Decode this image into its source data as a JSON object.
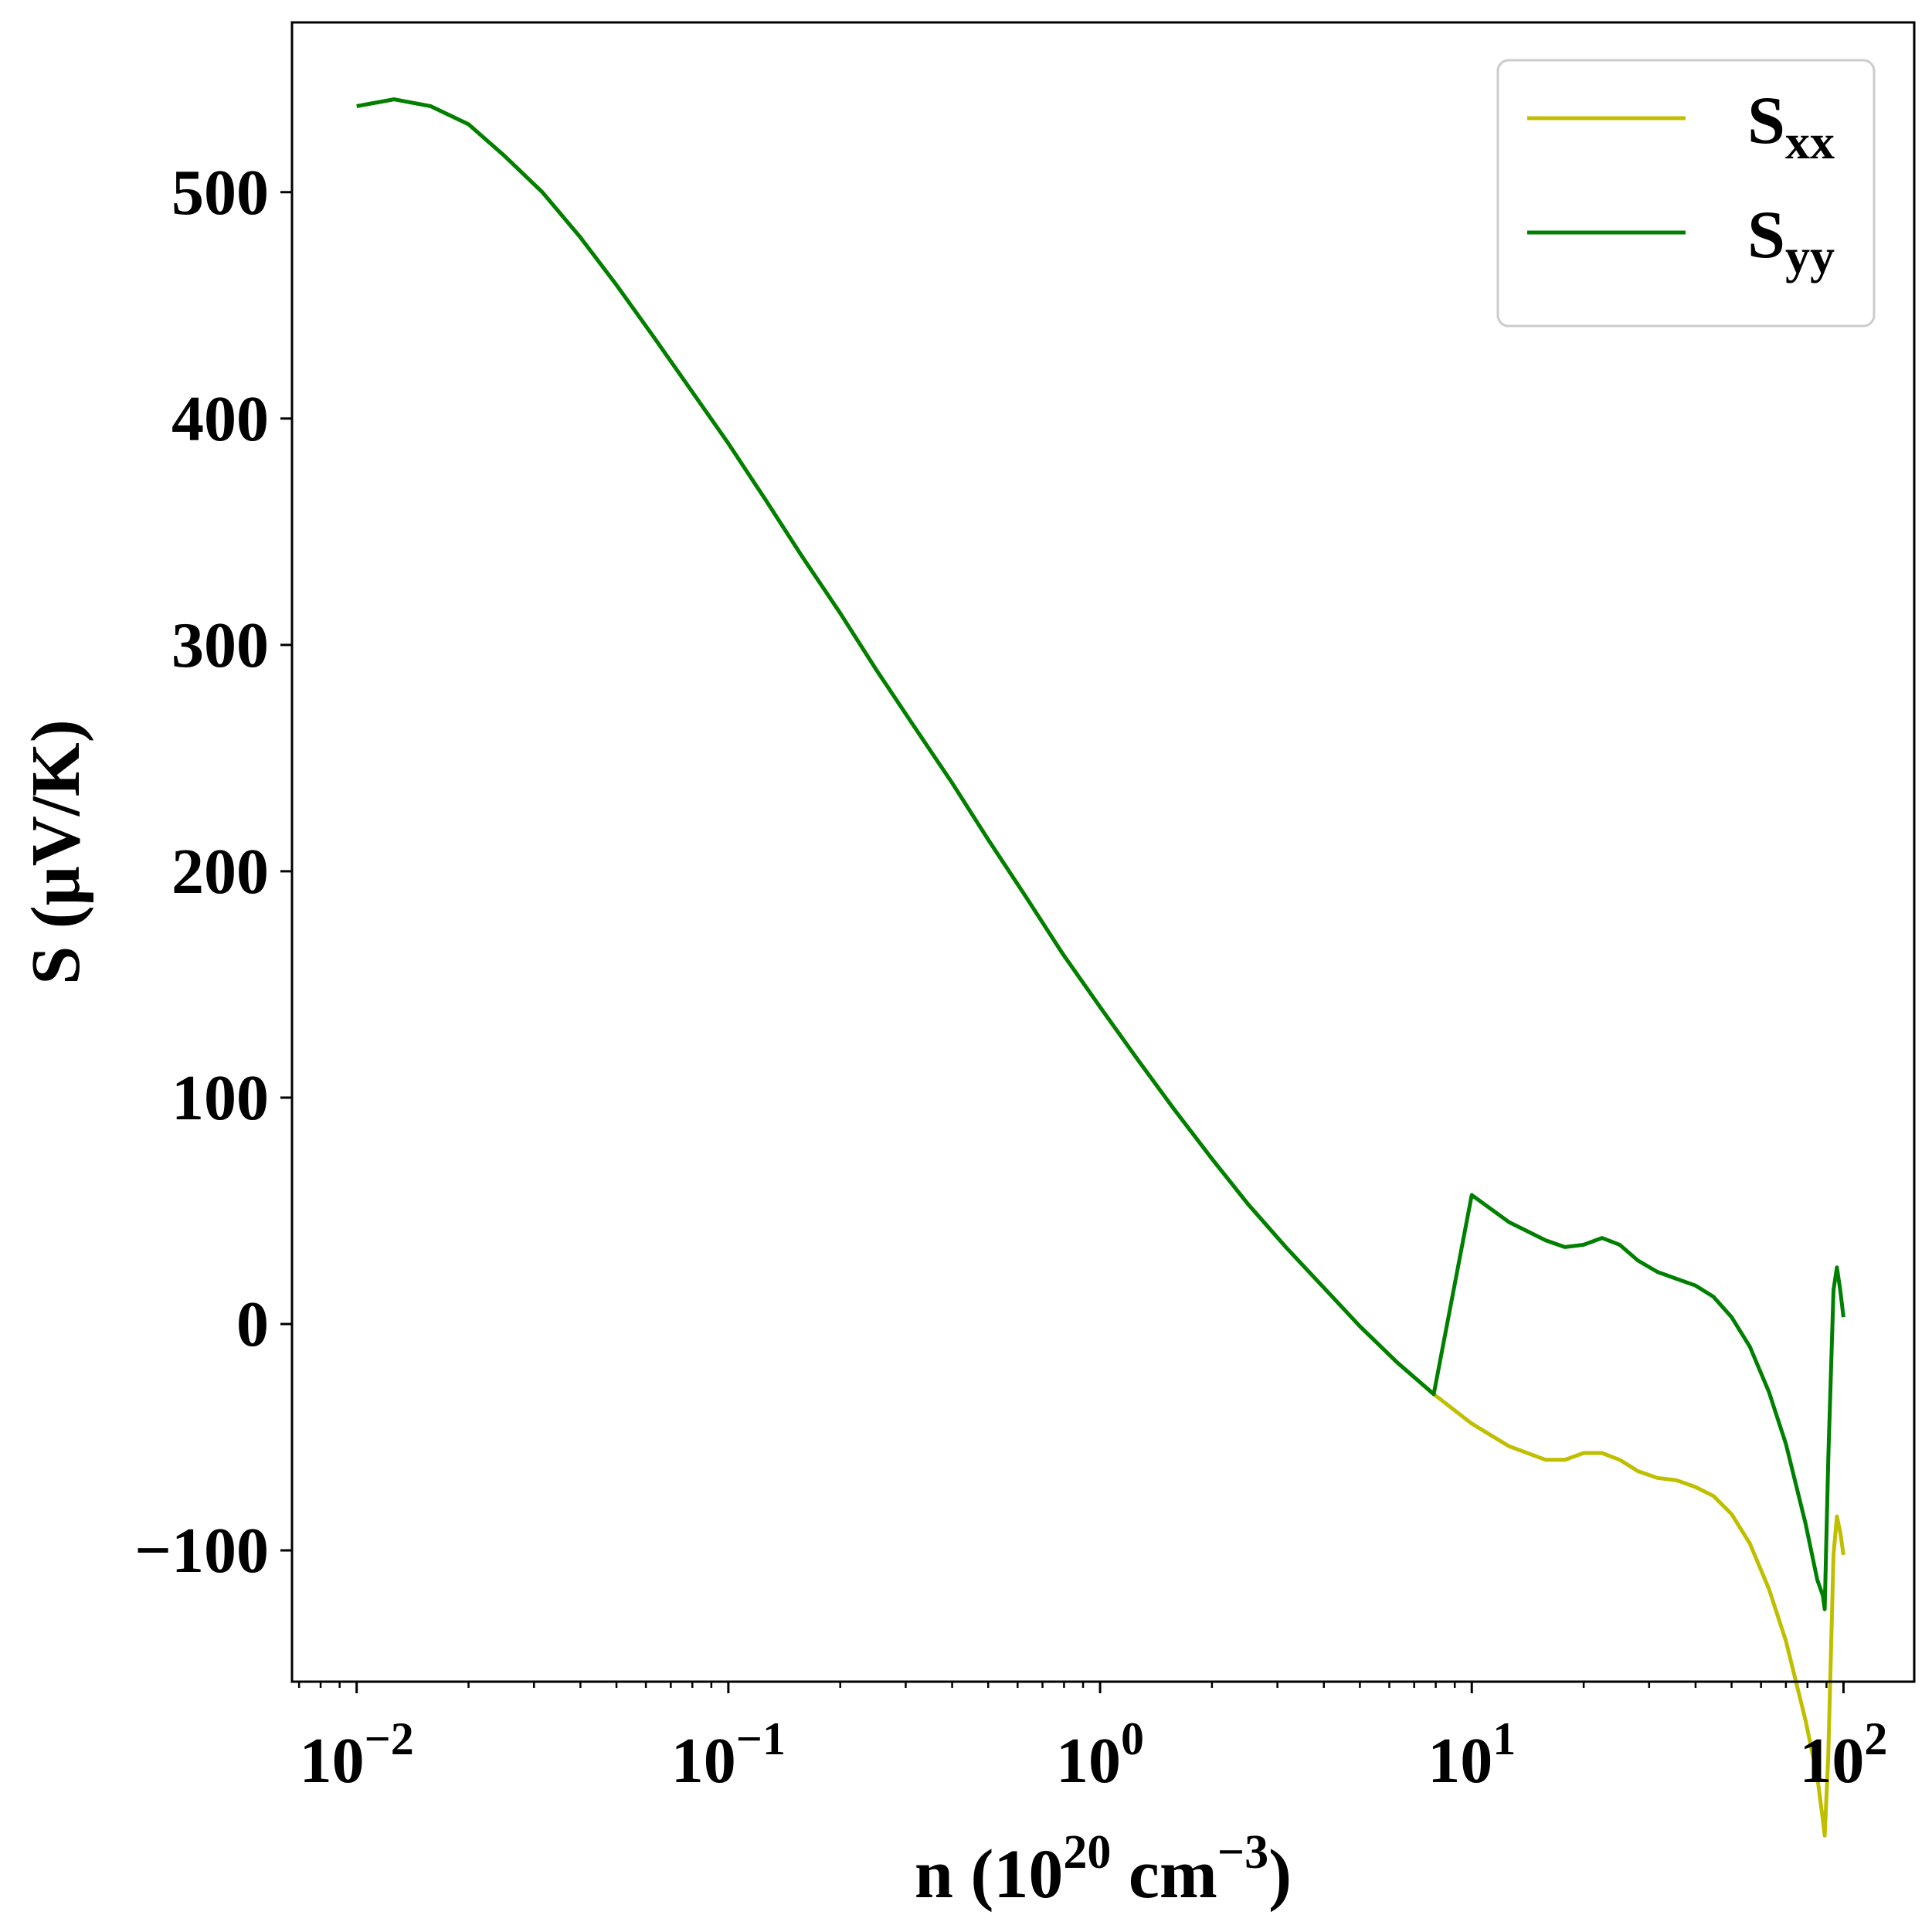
{
  "chart_data": {
    "type": "line",
    "xlabel": {
      "base": "n (10",
      "sup1": "20",
      "mid": " cm",
      "sup2": "−3",
      "end": ")"
    },
    "ylabel": "S (μV/K)",
    "xscale": "log",
    "xlim": [
      0.0067,
      155
    ],
    "ylim": [
      -158,
      575
    ],
    "x_ticks": [
      {
        "value": 0.01,
        "base": "10",
        "exp": "−2"
      },
      {
        "value": 0.1,
        "base": "10",
        "exp": "−1"
      },
      {
        "value": 1,
        "base": "10",
        "exp": "0"
      },
      {
        "value": 10,
        "base": "10",
        "exp": "1"
      },
      {
        "value": 100,
        "base": "10",
        "exp": "2"
      }
    ],
    "y_ticks": [
      {
        "value": -100,
        "label": "−100"
      },
      {
        "value": 0,
        "label": "0"
      },
      {
        "value": 100,
        "label": "100"
      },
      {
        "value": 200,
        "label": "200"
      },
      {
        "value": 300,
        "label": "300"
      },
      {
        "value": 400,
        "label": "400"
      },
      {
        "value": 500,
        "label": "500"
      }
    ],
    "grid": false,
    "legend_position": "top-right",
    "series": [
      {
        "name": "S",
        "sub": "xx",
        "color": "#bfbf00",
        "x": [
          0.01,
          0.0126,
          0.0158,
          0.02,
          0.025,
          0.0316,
          0.04,
          0.05,
          0.063,
          0.079,
          0.1,
          0.126,
          0.158,
          0.2,
          0.25,
          0.316,
          0.4,
          0.5,
          0.63,
          0.79,
          1,
          1.26,
          1.58,
          2,
          2.5,
          3.16,
          4,
          5,
          6.3,
          7.9,
          10,
          12.6,
          15.8,
          17.8,
          20,
          22.4,
          25,
          28,
          31.6,
          35.5,
          40,
          44.7,
          50,
          56,
          63,
          70,
          79,
          85,
          88,
          89,
          91,
          94,
          96,
          98,
          100
        ],
        "y": [
          538,
          541,
          538,
          530,
          516,
          500,
          480,
          459,
          436,
          413,
          389,
          364,
          339,
          314,
          289,
          264,
          239,
          214,
          189,
          164,
          140,
          117,
          95,
          73,
          53,
          34,
          16,
          -1,
          -17,
          -31,
          -44,
          -54,
          -60,
          -60,
          -57,
          -57,
          -60,
          -65,
          -68,
          -69,
          -72,
          -76,
          -84,
          -97,
          -117,
          -140,
          -175,
          -200,
          -219,
          -226,
          -191,
          -102,
          -85,
          -92,
          -102
        ]
      },
      {
        "name": "S",
        "sub": "yy",
        "color": "#008000",
        "x": [
          0.01,
          0.0126,
          0.0158,
          0.02,
          0.025,
          0.0316,
          0.04,
          0.05,
          0.063,
          0.079,
          0.1,
          0.126,
          0.158,
          0.2,
          0.25,
          0.316,
          0.4,
          0.5,
          0.63,
          0.79,
          1,
          1.26,
          1.58,
          2,
          2.5,
          3.16,
          4,
          5,
          6.3,
          7.9,
          10,
          12.6,
          15.8,
          17.8,
          20,
          22.4,
          25,
          28,
          31.6,
          35.5,
          40,
          44.7,
          50,
          56,
          63,
          70,
          79,
          85,
          88,
          89,
          91,
          94,
          96,
          98,
          100
        ],
        "y": [
          538,
          541,
          538,
          530,
          516,
          500,
          480,
          459,
          436,
          413,
          389,
          364,
          339,
          314,
          289,
          264,
          239,
          214,
          189,
          164,
          140,
          117,
          95,
          73,
          53,
          34,
          16,
          -1,
          -17,
          -31,
          57,
          45,
          37,
          34,
          35,
          38,
          35,
          28,
          23,
          20,
          17,
          12,
          3,
          -10,
          -30,
          -53,
          -88,
          -113,
          -120,
          -126,
          -60,
          15,
          25,
          15,
          3
        ]
      }
    ]
  }
}
